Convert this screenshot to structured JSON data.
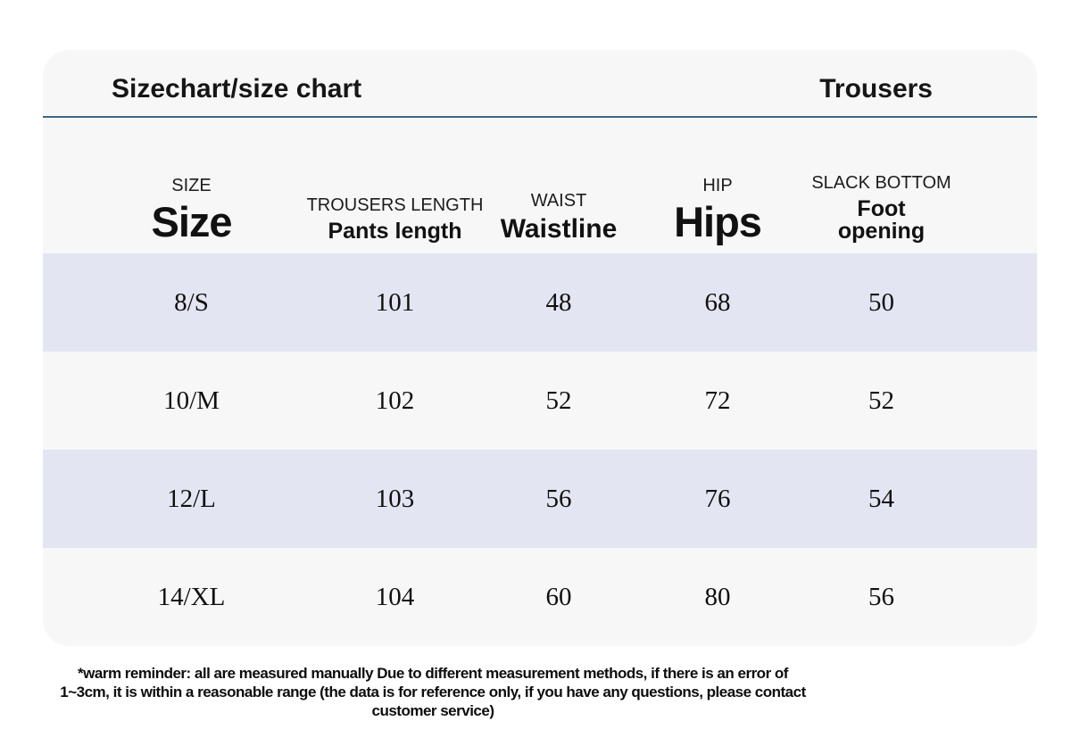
{
  "colors": {
    "page-bg": "#ffffff",
    "card-bg": "#f7f7f8",
    "accent-line": "#3f6680",
    "row-alt-bg": "#e3e6f2",
    "text": "#141414"
  },
  "header": {
    "title": "Sizechart/size chart",
    "product": "Trousers"
  },
  "size_table": {
    "columns": [
      {
        "id": "size",
        "label_top": "SIZE",
        "label_main": "Size"
      },
      {
        "id": "pants_length",
        "label_top": "TROUSERS LENGTH",
        "label_main": "Pants length"
      },
      {
        "id": "waistline",
        "label_top": "WAIST",
        "label_main": "Waistline"
      },
      {
        "id": "hips",
        "label_top": "HIP",
        "label_main": "Hips"
      },
      {
        "id": "foot_opening",
        "label_top": "SLACK BOTTOM",
        "label_main": "Foot\nopening"
      }
    ],
    "rows": [
      [
        "8/S",
        "101",
        "48",
        "68",
        "50"
      ],
      [
        "10/M",
        "102",
        "52",
        "72",
        "52"
      ],
      [
        "12/L",
        "103",
        "56",
        "76",
        "54"
      ],
      [
        "14/XL",
        "104",
        "60",
        "80",
        "56"
      ]
    ]
  },
  "footer": {
    "lines": [
      "*warm reminder: all are measured manually Due to different measurement methods, if there is an error of",
      "1~3cm, it is within a reasonable range (the data is for reference only, if you have any questions, please contact",
      "customer service)"
    ]
  }
}
